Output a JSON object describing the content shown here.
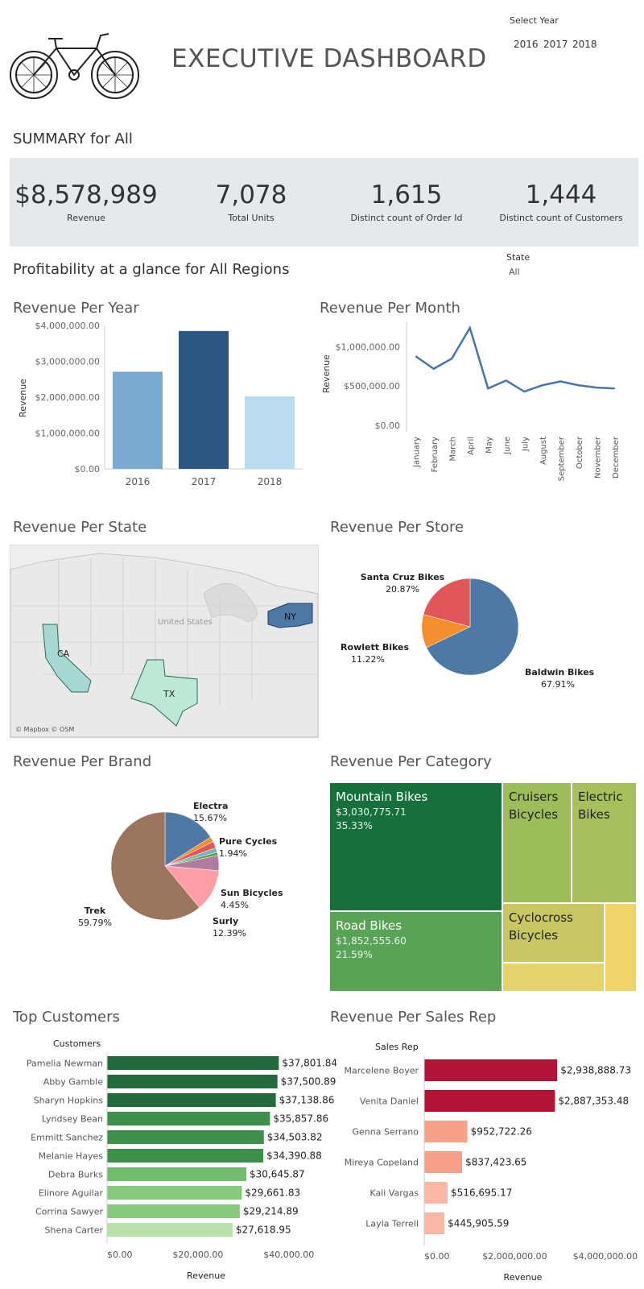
{
  "header": {
    "title": "EXECUTIVE DASHBOARD",
    "year_filter_label": "Select Year",
    "years": [
      "2016",
      "2017",
      "2018"
    ]
  },
  "summary": {
    "title": "SUMMARY for All",
    "kpis": [
      {
        "value": "$8,578,989",
        "label": "Revenue"
      },
      {
        "value": "7,078",
        "label": "Total Units"
      },
      {
        "value": "1,615",
        "label": "Distinct count of Order Id"
      },
      {
        "value": "1,444",
        "label": "Distinct count of Customers"
      }
    ]
  },
  "profitability": {
    "title": "Profitability at a glance for All Regions",
    "state_label": "State",
    "state_value": "All"
  },
  "titles": {
    "rev_year": "Revenue Per Year",
    "rev_month": "Revenue Per Month",
    "rev_state": "Revenue Per State",
    "rev_store": "Revenue Per Store",
    "rev_brand": "Revenue Per Brand",
    "rev_category": "Revenue Per Category",
    "top_customers": "Top Customers",
    "rev_salesrep": "Revenue Per Sales Rep"
  },
  "map": {
    "states": [
      "CA",
      "TX",
      "NY"
    ],
    "country_label": "United States",
    "attribution": "© Mapbox © OSM"
  },
  "colors": {
    "year_2016": "#7aaad0",
    "year_2017": "#2c5784",
    "year_2018": "#b9dcf1",
    "line": "#4a76a8",
    "rep_dark": "#b21438",
    "rep_light": "#f9a08a"
  },
  "chart_data": [
    {
      "type": "bar",
      "title": "Revenue Per Year",
      "ylabel": "Revenue",
      "categories": [
        "2016",
        "2017",
        "2018"
      ],
      "values": [
        2709484,
        3845515,
        2023990
      ],
      "ylim": [
        0,
        4000000
      ],
      "yticks": [
        "$0.00",
        "$1,000,000.00",
        "$2,000,000.00",
        "$3,000,000.00",
        "$4,000,000.00"
      ]
    },
    {
      "type": "line",
      "title": "Revenue Per Month",
      "ylabel": "Revenue",
      "categories": [
        "January",
        "February",
        "March",
        "April",
        "May",
        "June",
        "July",
        "August",
        "September",
        "October",
        "November",
        "December"
      ],
      "values": [
        880000,
        720000,
        850000,
        1240000,
        470000,
        570000,
        430000,
        510000,
        560000,
        510000,
        480000,
        470000
      ],
      "ylim": [
        0,
        1250000
      ],
      "yticks": [
        "$0.00",
        "$500,000.00",
        "$1,000,000.00"
      ]
    },
    {
      "type": "pie",
      "title": "Revenue Per Store",
      "slices": [
        {
          "name": "Baldwin Bikes",
          "label": "67.91%",
          "value": 67.91,
          "color": "#4e79a7"
        },
        {
          "name": "Rowlett Bikes",
          "label": "11.22%",
          "value": 11.22,
          "color": "#f28e2b"
        },
        {
          "name": "Santa Cruz Bikes",
          "label": "20.87%",
          "value": 20.87,
          "color": "#e15759"
        }
      ]
    },
    {
      "type": "pie",
      "title": "Revenue Per Brand",
      "slices": [
        {
          "name": "Electra",
          "label": "15.67%",
          "value": 15.67,
          "color": "#4e79a7"
        },
        {
          "name": "",
          "label": "",
          "value": 1.5,
          "color": "#f28e2b"
        },
        {
          "name": "Pure Cycles",
          "label": "1.94%",
          "value": 1.94,
          "color": "#e15759"
        },
        {
          "name": "",
          "label": "",
          "value": 1.4,
          "color": "#76b7b2"
        },
        {
          "name": "",
          "label": "",
          "value": 0.9,
          "color": "#59a14f"
        },
        {
          "name": "Sun Bicycles",
          "label": "4.45%",
          "value": 4.45,
          "color": "#b07aa1"
        },
        {
          "name": "Surly",
          "label": "12.39%",
          "value": 12.39,
          "color": "#ff9da7"
        },
        {
          "name": "Trek",
          "label": "59.79%",
          "value": 59.79,
          "color": "#9c755f"
        }
      ]
    },
    {
      "type": "treemap",
      "title": "Revenue Per Category",
      "cells": [
        {
          "name": "Mountain Bikes",
          "value": "$3,030,775.71",
          "pct": "35.33%",
          "color": "#17703b"
        },
        {
          "name": "Road Bikes",
          "value": "$1,852,555.60",
          "pct": "21.59%",
          "color": "#58a355"
        },
        {
          "name": "Cruisers Bicycles",
          "value": "",
          "pct": "",
          "color": "#9cbd59"
        },
        {
          "name": "Electric Bikes",
          "value": "",
          "pct": "",
          "color": "#a5c05c"
        },
        {
          "name": "Cyclocross Bicycles",
          "value": "",
          "pct": "",
          "color": "#c8c764"
        },
        {
          "name": "",
          "value": "",
          "pct": "",
          "color": "#e6d36b"
        },
        {
          "name": "",
          "value": "",
          "pct": "",
          "color": "#f0d468"
        }
      ]
    },
    {
      "type": "bar",
      "title": "Top Customers",
      "orientation": "horizontal",
      "category_header": "Customers",
      "xlabel": "Revenue",
      "categories": [
        "Pamelia Newman",
        "Abby Gamble",
        "Sharyn Hopkins",
        "Lyndsey Bean",
        "Emmitt Sanchez",
        "Melanie Hayes",
        "Debra Burks",
        "Elinore Aguilar",
        "Corrina Sawyer",
        "Shena Carter"
      ],
      "values": [
        37801.84,
        37500.89,
        37138.86,
        35857.86,
        34503.82,
        34390.88,
        30645.87,
        29661.83,
        29214.89,
        27618.95
      ],
      "labels": [
        "$37,801.84",
        "$37,500.89",
        "$37,138.86",
        "$35,857.86",
        "$34,503.82",
        "$34,390.88",
        "$30,645.87",
        "$29,661.83",
        "$29,214.89",
        "$27,618.95"
      ],
      "colors": [
        "#236b3c",
        "#236b3c",
        "#236b3c",
        "#3d8f4b",
        "#3d8f4b",
        "#3d8f4b",
        "#72bd6d",
        "#86ca7c",
        "#86ca7c",
        "#b8e0a9"
      ],
      "xlim": [
        0,
        45000
      ],
      "xticks": [
        "$0.00",
        "$20,000.00",
        "$40,000.00"
      ]
    },
    {
      "type": "bar",
      "title": "Revenue Per Sales Rep",
      "orientation": "horizontal",
      "category_header": "Sales Rep",
      "xlabel": "Revenue",
      "categories": [
        "Marcelene Boyer",
        "Venita Daniel",
        "Genna Serrano",
        "Mireya Copeland",
        "Kali Vargas",
        "Layla Terrell"
      ],
      "values": [
        2938888.73,
        2887353.48,
        952722.26,
        837423.65,
        516695.17,
        445905.59
      ],
      "labels": [
        "$2,938,888.73",
        "$2,887,353.48",
        "$952,722.26",
        "$837,423.65",
        "$516,695.17",
        "$445,905.59"
      ],
      "colors": [
        "#b21438",
        "#b21438",
        "#f9a08a",
        "#f9a08a",
        "#fbb8a7",
        "#fbb8a7"
      ],
      "xlim": [
        0,
        4500000
      ],
      "xticks": [
        "$0.00",
        "$2,000,000.00",
        "$4,000,000.00"
      ]
    }
  ]
}
